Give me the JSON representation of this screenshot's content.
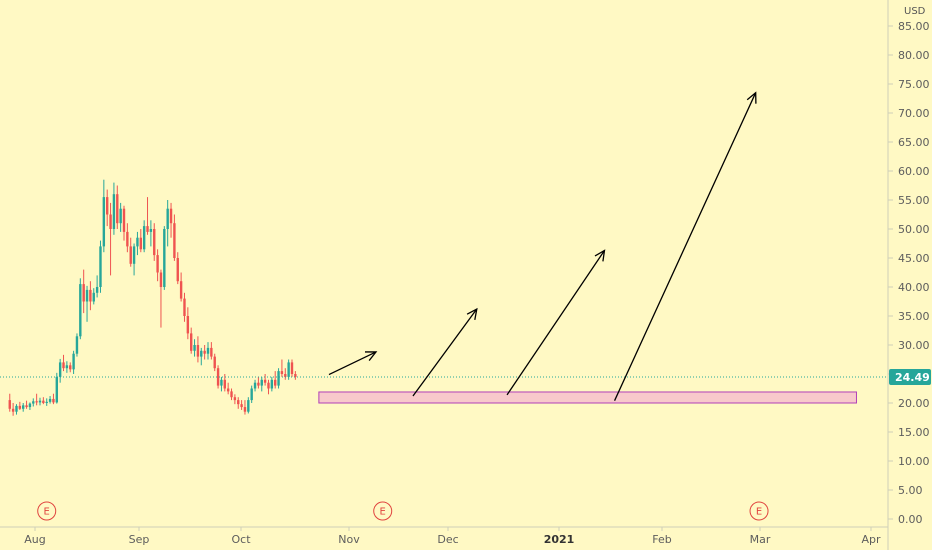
{
  "chart_data": {
    "type": "candlestick",
    "currency": "USD",
    "y_ticks": [
      "85.00",
      "80.00",
      "75.00",
      "70.00",
      "65.00",
      "60.00",
      "55.00",
      "50.00",
      "45.00",
      "40.00",
      "35.00",
      "30.00",
      "25.00",
      "20.00",
      "15.00",
      "10.00",
      "5.00",
      "0.00"
    ],
    "ylim": [
      0,
      87
    ],
    "x_ticks": [
      "Aug",
      "Sep",
      "Oct",
      "Nov",
      "Dec",
      "2021",
      "Feb",
      "Mar",
      "Apr"
    ],
    "bold_tick": "2021",
    "last_price": "24.49",
    "last_price_value": 24.49,
    "earnings_marker": "E",
    "earnings_days": [
      2,
      102,
      214
    ],
    "colors": {
      "up": "#26A69A",
      "down": "#EF5350",
      "zone_fill": "#F8C9CB",
      "zone_stroke": "#B040B8",
      "arrow": "#000000",
      "price_line": "#26A69A"
    },
    "candles": [
      [
        -9,
        20.5,
        21.6,
        18.5,
        19.0
      ],
      [
        -8,
        19.0,
        20.0,
        17.8,
        18.5
      ],
      [
        -7,
        18.5,
        19.8,
        18.0,
        19.5
      ],
      [
        -6,
        19.5,
        20.2,
        18.8,
        19.0
      ],
      [
        -5,
        19.0,
        20.0,
        18.5,
        19.6
      ],
      [
        -4,
        19.6,
        20.4,
        19.0,
        19.3
      ],
      [
        -3,
        19.3,
        20.1,
        18.8,
        19.9
      ],
      [
        -2,
        19.9,
        20.8,
        19.4,
        20.3
      ],
      [
        -1,
        20.3,
        21.6,
        19.6,
        20.1
      ],
      [
        0,
        20.1,
        20.9,
        19.6,
        20.4
      ],
      [
        1,
        20.4,
        21.0,
        19.8,
        20.0
      ],
      [
        2,
        20.0,
        20.8,
        19.5,
        20.2
      ],
      [
        3,
        20.2,
        21.2,
        19.9,
        20.7
      ],
      [
        4,
        20.7,
        21.6,
        19.8,
        20.1
      ],
      [
        5,
        20.1,
        25.2,
        19.9,
        24.5
      ],
      [
        6,
        24.5,
        27.6,
        23.5,
        27.0
      ],
      [
        7,
        27.0,
        28.3,
        25.5,
        26.0
      ],
      [
        8,
        26.0,
        27.2,
        25.2,
        26.5
      ],
      [
        9,
        26.5,
        27.0,
        25.3,
        25.8
      ],
      [
        10,
        25.8,
        29.0,
        25.0,
        28.5
      ],
      [
        11,
        28.5,
        32.0,
        28.0,
        31.5
      ],
      [
        12,
        31.5,
        41.5,
        31.0,
        40.5
      ],
      [
        13,
        40.5,
        43.0,
        35.5,
        37.5
      ],
      [
        14,
        37.5,
        40.2,
        34.0,
        39.5
      ],
      [
        15,
        39.5,
        41.0,
        36.0,
        37.5
      ],
      [
        16,
        37.5,
        39.8,
        37.0,
        39.0
      ],
      [
        17,
        39.0,
        42.0,
        38.2,
        40.0
      ],
      [
        18,
        40.0,
        48.0,
        39.0,
        47.0
      ],
      [
        19,
        47.0,
        58.5,
        46.0,
        55.5
      ],
      [
        20,
        55.5,
        56.8,
        50.5,
        52.5
      ],
      [
        21,
        52.5,
        54.5,
        42.0,
        50.0
      ],
      [
        22,
        50.0,
        58.0,
        49.0,
        56.0
      ],
      [
        23,
        56.0,
        57.5,
        50.0,
        51.0
      ],
      [
        24,
        51.0,
        54.5,
        49.5,
        53.5
      ],
      [
        25,
        53.5,
        54.0,
        48.0,
        49.5
      ],
      [
        26,
        49.5,
        51.0,
        46.0,
        47.0
      ],
      [
        27,
        47.0,
        48.5,
        43.5,
        44.0
      ],
      [
        28,
        44.0,
        47.5,
        42.0,
        47.0
      ],
      [
        29,
        47.0,
        49.5,
        45.5,
        48.5
      ],
      [
        30,
        48.5,
        50.0,
        46.0,
        46.5
      ],
      [
        31,
        46.5,
        51.5,
        46.0,
        50.5
      ],
      [
        32,
        50.5,
        55.5,
        49.0,
        49.5
      ],
      [
        33,
        49.5,
        51.5,
        47.0,
        50.0
      ],
      [
        34,
        50.0,
        51.0,
        44.5,
        45.5
      ],
      [
        35,
        45.5,
        46.5,
        41.0,
        42.5
      ],
      [
        36,
        42.5,
        43.0,
        33.0,
        40.0
      ],
      [
        37,
        40.0,
        50.5,
        39.5,
        50.0
      ],
      [
        38,
        50.0,
        55.0,
        47.0,
        53.5
      ],
      [
        39,
        53.5,
        54.5,
        48.5,
        51.0
      ],
      [
        40,
        51.0,
        52.5,
        44.5,
        45.0
      ],
      [
        41,
        45.0,
        46.0,
        40.5,
        41.0
      ],
      [
        42,
        41.0,
        42.5,
        37.5,
        38.0
      ],
      [
        43,
        38.0,
        39.0,
        34.0,
        35.0
      ],
      [
        44,
        35.0,
        36.5,
        31.0,
        32.0
      ],
      [
        45,
        32.0,
        33.0,
        28.5,
        29.0
      ],
      [
        46,
        29.0,
        31.0,
        28.0,
        30.0
      ],
      [
        47,
        30.0,
        31.5,
        27.0,
        28.0
      ],
      [
        48,
        28.0,
        29.5,
        26.5,
        29.0
      ],
      [
        49,
        29.0,
        30.0,
        27.5,
        28.5
      ],
      [
        50,
        28.5,
        30.5,
        27.5,
        29.5
      ],
      [
        51,
        29.5,
        30.5,
        27.5,
        28.0
      ],
      [
        52,
        28.0,
        28.5,
        25.5,
        26.0
      ],
      [
        53,
        26.0,
        26.5,
        22.5,
        23.0
      ],
      [
        54,
        23.0,
        24.5,
        22.0,
        24.0
      ],
      [
        55,
        24.0,
        25.0,
        22.0,
        22.5
      ],
      [
        56,
        22.5,
        23.5,
        21.5,
        22.0
      ],
      [
        57,
        22.0,
        22.5,
        20.5,
        21.0
      ],
      [
        58,
        21.0,
        21.5,
        19.8,
        20.5
      ],
      [
        59,
        20.5,
        21.0,
        19.0,
        19.8
      ],
      [
        60,
        19.8,
        20.5,
        18.8,
        19.3
      ],
      [
        61,
        19.3,
        20.5,
        18.0,
        18.5
      ],
      [
        62,
        18.5,
        21.0,
        18.2,
        20.5
      ],
      [
        63,
        20.5,
        23.0,
        20.0,
        22.5
      ],
      [
        64,
        22.5,
        24.0,
        22.0,
        23.5
      ],
      [
        65,
        23.5,
        24.5,
        22.5,
        23.0
      ],
      [
        66,
        23.0,
        24.5,
        22.0,
        24.0
      ],
      [
        67,
        24.0,
        25.0,
        23.0,
        23.5
      ],
      [
        68,
        23.5,
        24.0,
        21.5,
        22.5
      ],
      [
        69,
        22.5,
        24.5,
        22.0,
        24.0
      ],
      [
        70,
        24.0,
        25.5,
        22.5,
        23.0
      ],
      [
        71,
        23.0,
        26.0,
        22.5,
        25.5
      ],
      [
        72,
        25.5,
        27.5,
        24.5,
        25.0
      ],
      [
        73,
        25.0,
        26.0,
        24.0,
        24.5
      ],
      [
        74,
        24.5,
        27.5,
        24.0,
        27.0
      ],
      [
        75,
        27.0,
        27.5,
        24.5,
        25.0
      ],
      [
        76,
        25.0,
        25.5,
        24.0,
        24.49
      ]
    ],
    "zone": {
      "x0": 83,
      "x1": 243,
      "y0": 20.0,
      "y1": 21.9
    },
    "arrows": [
      {
        "x0": 86,
        "y0": 24.9,
        "x1": 100,
        "y1": 28.8
      },
      {
        "x0": 111,
        "y0": 21.2,
        "x1": 130,
        "y1": 36.2
      },
      {
        "x0": 139,
        "y0": 21.4,
        "x1": 168,
        "y1": 46.3
      },
      {
        "x0": 171,
        "y0": 20.4,
        "x1": 213,
        "y1": 73.5
      }
    ]
  }
}
